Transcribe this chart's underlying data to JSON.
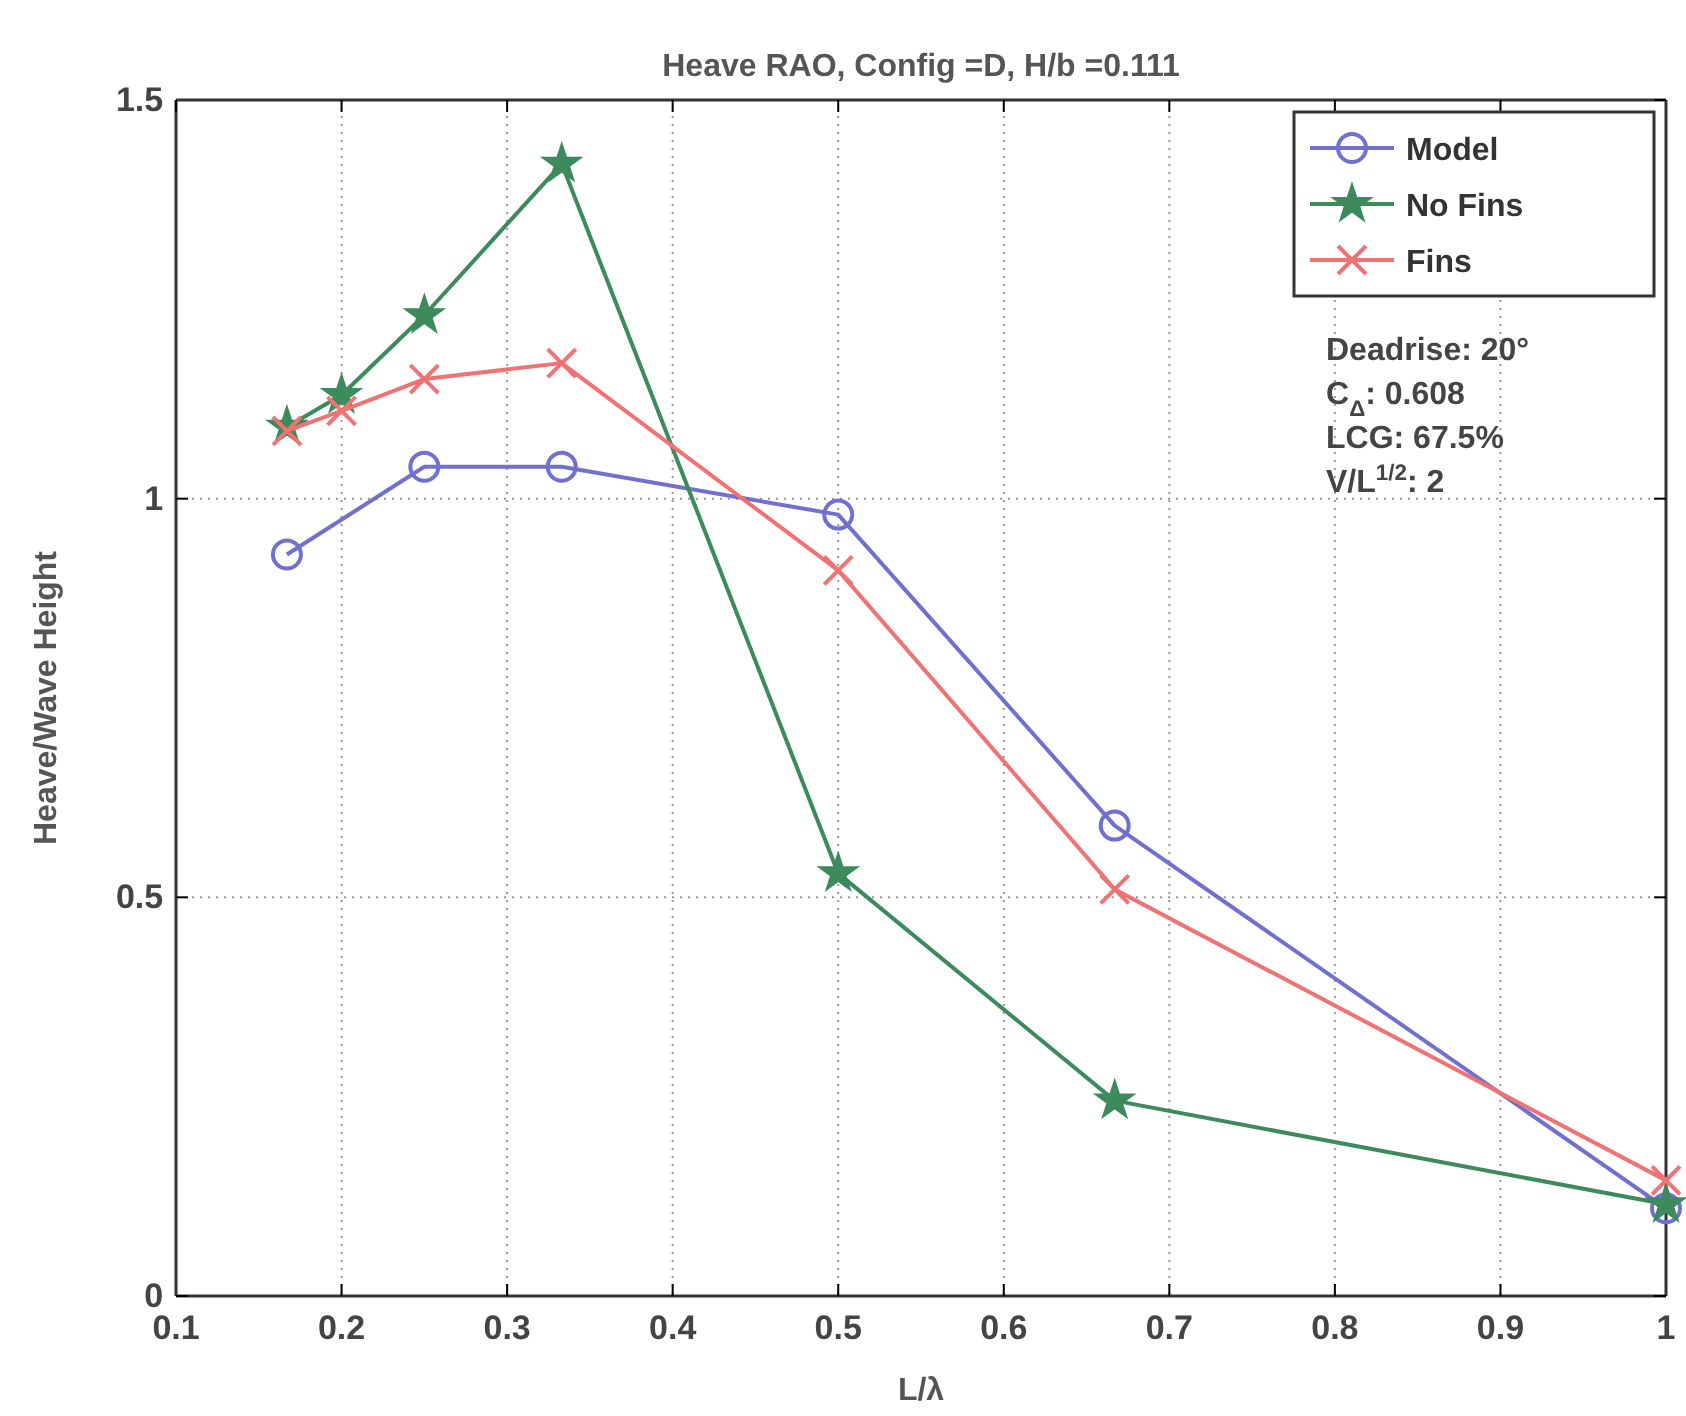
{
  "chart_data": {
    "type": "line",
    "title": "Heave RAO, Config =D, H/b =0.111",
    "xlabel": "L/λ",
    "ylabel": "Heave/Wave Height",
    "series": [
      {
        "name": "Model",
        "color": "#7070d0",
        "marker": "circle",
        "x": [
          0.167,
          0.25,
          0.333,
          0.5,
          0.667,
          1
        ],
        "values": [
          0.93,
          1.04,
          1.04,
          0.98,
          0.59,
          0.11
        ]
      },
      {
        "name": "No Fins",
        "color": "#3d8a5c",
        "marker": "star",
        "x": [
          0.167,
          0.2,
          0.25,
          0.333,
          0.5,
          0.667,
          1
        ],
        "values": [
          1.09,
          1.13,
          1.23,
          1.42,
          0.53,
          0.245,
          0.115
        ]
      },
      {
        "name": "Fins",
        "color": "#f07272",
        "marker": "cross",
        "x": [
          0.167,
          0.2,
          0.25,
          0.333,
          0.5,
          0.667,
          1
        ],
        "values": [
          1.085,
          1.11,
          1.15,
          1.17,
          0.91,
          0.51,
          0.145
        ]
      }
    ],
    "xlim": [
      0.1,
      1
    ],
    "xticks": [
      0.1,
      0.2,
      0.3,
      0.4,
      0.5,
      0.6,
      0.7,
      0.8,
      0.9,
      1
    ],
    "ylim": [
      0,
      1.5
    ],
    "yticks": [
      0,
      0.5,
      1,
      1.5
    ],
    "grid": true,
    "legend": "top right",
    "line_style": "solid",
    "annotations": [
      "Deadrise: 20°",
      "C$_{Δ}$: 0.608",
      "LCG: 67.5%",
      "V/L$^{1/2}$: 2"
    ]
  }
}
